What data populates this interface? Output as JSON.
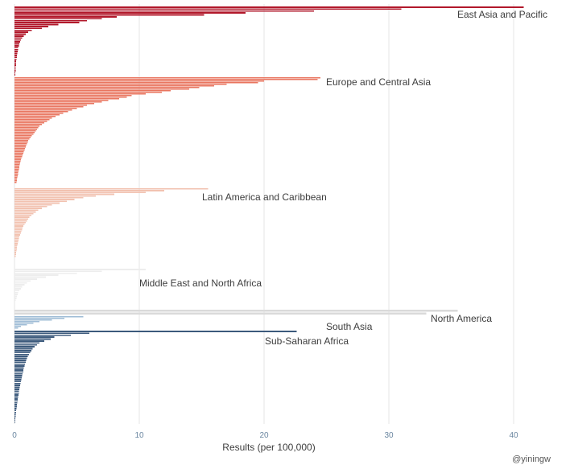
{
  "chart_data": {
    "type": "bar",
    "orientation": "horizontal",
    "xlabel": "Results (per 100,000)",
    "xlim": [
      0,
      43
    ],
    "xticks": [
      0,
      10,
      20,
      30,
      40
    ],
    "grid": true,
    "credit": "@yiningw",
    "series": [
      {
        "name": "East Asia and Pacific",
        "color": "#b2182b",
        "values": [
          40.8,
          31.0,
          24.0,
          18.5,
          15.2,
          8.2,
          7.0,
          5.8,
          5.2,
          3.5,
          2.7,
          2.2,
          1.4,
          1.1,
          0.9,
          0.75,
          0.6,
          0.5,
          0.45,
          0.4,
          0.35,
          0.3,
          0.28,
          0.25,
          0.22,
          0.2,
          0.18,
          0.16,
          0.14,
          0.13,
          0.12,
          0.11,
          0.1,
          0.09,
          0.08,
          0.07
        ]
      },
      {
        "name": "Europe and Central Asia",
        "color": "#e9755f",
        "values": [
          24.5,
          24.3,
          20.0,
          19.5,
          17.0,
          16.0,
          14.8,
          14.0,
          12.5,
          11.8,
          10.5,
          9.4,
          9.0,
          8.4,
          7.5,
          7.0,
          6.4,
          5.8,
          5.5,
          5.0,
          4.6,
          4.3,
          3.9,
          3.6,
          3.3,
          3.0,
          2.8,
          2.6,
          2.4,
          2.2,
          2.0,
          1.9,
          1.8,
          1.7,
          1.6,
          1.5,
          1.4,
          1.3,
          1.2,
          1.1,
          1.05,
          1.0,
          0.95,
          0.9,
          0.85,
          0.8,
          0.75,
          0.7,
          0.65,
          0.6,
          0.55,
          0.5,
          0.48,
          0.45,
          0.42,
          0.4,
          0.38,
          0.35,
          0.32,
          0.3,
          0.28,
          0.25,
          0.22,
          0.2,
          0.18,
          0.15
        ]
      },
      {
        "name": "Latin America and Caribbean",
        "color": "#f2c2b0",
        "values": [
          15.5,
          12.0,
          10.5,
          8.0,
          6.5,
          5.5,
          4.8,
          4.2,
          3.6,
          3.0,
          2.6,
          2.2,
          1.9,
          1.7,
          1.5,
          1.35,
          1.2,
          1.1,
          1.0,
          0.9,
          0.8,
          0.72,
          0.65,
          0.6,
          0.55,
          0.5,
          0.45,
          0.4,
          0.36,
          0.32,
          0.28,
          0.25,
          0.22,
          0.2,
          0.18,
          0.16,
          0.14,
          0.12,
          0.1
        ]
      },
      {
        "name": "Middle East and North Africa",
        "color": "#ededed",
        "values": [
          10.5,
          7.0,
          5.0,
          3.5,
          2.5,
          1.8,
          1.3,
          1.0,
          0.8,
          0.6,
          0.5,
          0.4,
          0.3,
          0.25,
          0.2,
          0.15,
          0.1
        ]
      },
      {
        "name": "North America",
        "color": "#dadada",
        "values": [
          35.5,
          33.0
        ]
      },
      {
        "name": "South Asia",
        "color": "#9fbcd6",
        "values": [
          5.5,
          4.0,
          3.0,
          2.0,
          1.5,
          1.0,
          0.5,
          0.3
        ]
      },
      {
        "name": "Sub-Saharan Africa",
        "color": "#3c5a7c",
        "values": [
          22.6,
          6.0,
          4.5,
          3.2,
          2.9,
          2.4,
          2.0,
          1.8,
          1.6,
          1.45,
          1.35,
          1.25,
          1.15,
          1.05,
          1.0,
          0.95,
          0.9,
          0.85,
          0.8,
          0.75,
          0.72,
          0.7,
          0.66,
          0.62,
          0.58,
          0.55,
          0.52,
          0.48,
          0.45,
          0.42,
          0.4,
          0.37,
          0.34,
          0.32,
          0.3,
          0.27,
          0.25,
          0.22,
          0.2,
          0.18,
          0.16,
          0.14,
          0.12,
          0.1,
          0.09,
          0.08,
          0.07,
          0.06
        ]
      }
    ]
  }
}
